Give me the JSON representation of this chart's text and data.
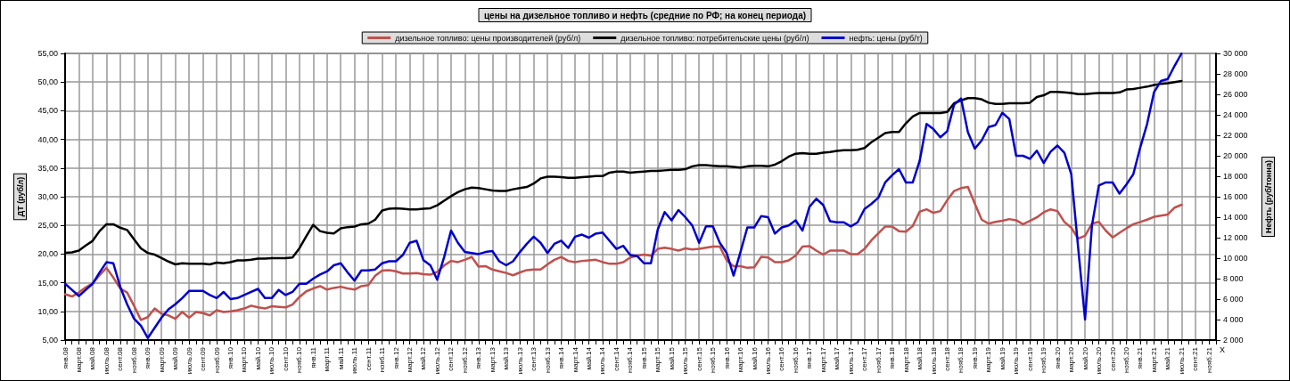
{
  "chart_data": {
    "type": "line",
    "title": "цены на дизельное топливо и нефть (средние по РФ; на конец периода)",
    "xlabel": "X",
    "ylabel": "ДТ (руб/л)",
    "y2label": "Нефть (руб/тонна)",
    "categories": [
      "янв.08",
      null,
      "март.08",
      null,
      "май.08",
      null,
      "июль.08",
      null,
      "сент.08",
      null,
      "нояб.08",
      null,
      "янв.09",
      null,
      "март.09",
      null,
      "май.09",
      null,
      "июль.09",
      null,
      "сент.09",
      null,
      "нояб.09",
      null,
      "янв.10",
      null,
      "март.10",
      null,
      "май.10",
      null,
      "июль.10",
      null,
      "сент.10",
      null,
      "нояб.10",
      null,
      "янв.11",
      null,
      "март.11",
      null,
      "май.11",
      null,
      "июль.11",
      null,
      "сент.11",
      null,
      "нояб.11",
      null,
      "янв.12",
      null,
      "март.12",
      null,
      "май.12",
      null,
      "июль.12",
      null,
      "сент.12",
      null,
      "нояб.12",
      null,
      "янв.13",
      null,
      "март.13",
      null,
      "май.13",
      null,
      "июль.13",
      null,
      "сент.13",
      null,
      "нояб.13",
      null,
      "янв.14",
      null,
      "март.14",
      null,
      "май.14",
      null,
      "июль.14",
      null,
      "сент.14",
      null,
      "нояб.14",
      null,
      "янв.15",
      null,
      "март.15",
      null,
      "май.15",
      null,
      "июль.15",
      null,
      "сент.15",
      null,
      "нояб.15",
      null,
      "янв.16",
      null,
      "март.16",
      null,
      "май.16",
      null,
      "июль.16",
      null,
      "сент.16",
      null,
      "нояб.16",
      null,
      "янв.17",
      null,
      "март.17",
      null,
      "май.17",
      null,
      "июль.17",
      null,
      "сент.17",
      null,
      "нояб.17",
      null,
      "янв.18",
      null,
      "март.18",
      null,
      "май.18",
      null,
      "июль.18",
      null,
      "сент.18",
      null,
      "нояб.18",
      null,
      "янв.19",
      null,
      "март.19",
      null,
      "май.19",
      null,
      "июль.19",
      null,
      "сент.19",
      null,
      "нояб.19",
      null,
      "янв.20",
      null,
      "март.20",
      null,
      "май.20",
      null,
      "июль.20",
      null,
      "сент.20",
      null,
      "нояб.20",
      null,
      "янв.21",
      null,
      "март.21",
      null,
      "май.21",
      null,
      "июль.21",
      null,
      "сент.21",
      null,
      "нояб.21",
      null
    ],
    "series": [
      {
        "name": "дизельное топливо: цены производителей (руб/л)",
        "color": "#c0504d",
        "values": [
          13.0,
          12.6,
          13.3,
          14.2,
          14.9,
          16.3,
          17.6,
          15.9,
          14.0,
          13.3,
          11.0,
          8.5,
          9.0,
          10.5,
          9.6,
          9.3,
          8.7,
          9.9,
          8.9,
          9.9,
          9.7,
          9.3,
          10.2,
          9.9,
          10.0,
          10.2,
          10.5,
          11.0,
          10.7,
          10.5,
          10.9,
          10.8,
          10.7,
          11.2,
          12.5,
          13.5,
          14.0,
          14.4,
          13.8,
          14.1,
          14.3,
          14.0,
          13.8,
          14.4,
          14.6,
          16.2,
          17.1,
          17.2,
          17.0,
          16.6,
          16.6,
          16.7,
          16.5,
          16.4,
          16.9,
          18.0,
          18.8,
          18.6,
          19.0,
          19.5,
          17.8,
          17.9,
          17.3,
          17.0,
          16.7,
          16.3,
          16.8,
          17.2,
          17.3,
          17.3,
          18.2,
          19.0,
          19.5,
          18.8,
          18.6,
          18.8,
          18.9,
          19.0,
          18.6,
          18.3,
          18.3,
          18.6,
          19.4,
          19.7,
          19.9,
          19.7,
          20.9,
          21.1,
          20.9,
          20.6,
          21.0,
          20.8,
          20.9,
          21.1,
          21.3,
          21.3,
          18.9,
          17.9,
          17.9,
          17.6,
          17.7,
          19.5,
          19.4,
          18.6,
          18.6,
          18.9,
          19.7,
          21.3,
          21.4,
          20.6,
          19.9,
          20.6,
          20.6,
          20.6,
          20.0,
          20.0,
          20.9,
          22.4,
          23.6,
          24.8,
          24.8,
          24.0,
          23.9,
          24.9,
          27.4,
          27.8,
          27.2,
          27.5,
          29.4,
          31.0,
          31.5,
          31.7,
          28.8,
          26.0,
          25.3,
          25.6,
          25.8,
          26.1,
          25.9,
          25.2,
          25.8,
          26.4,
          27.3,
          27.8,
          27.5,
          25.6,
          24.6,
          22.7,
          23.2,
          25.3,
          25.6,
          24.1,
          22.9,
          23.7,
          24.5,
          25.2,
          25.6,
          26.0,
          26.5,
          26.7,
          26.9,
          28.1,
          28.6,
          null,
          null,
          null,
          null,
          null
        ]
      },
      {
        "name": "дизельное топливо: потребительские цены (руб/л)",
        "color": "#000000",
        "values": [
          20.2,
          20.3,
          20.6,
          21.5,
          22.3,
          24.0,
          25.2,
          25.2,
          24.6,
          24.2,
          22.6,
          21.0,
          20.2,
          19.9,
          19.3,
          18.7,
          18.2,
          18.4,
          18.3,
          18.3,
          18.3,
          18.2,
          18.5,
          18.4,
          18.6,
          18.9,
          18.9,
          19.0,
          19.2,
          19.2,
          19.3,
          19.3,
          19.3,
          19.4,
          21.0,
          23.1,
          25.1,
          24.0,
          23.7,
          23.6,
          24.5,
          24.7,
          24.8,
          25.2,
          25.3,
          26.0,
          27.6,
          27.9,
          28.0,
          27.9,
          27.8,
          27.8,
          27.9,
          28.0,
          28.5,
          29.3,
          30.1,
          30.8,
          31.3,
          31.6,
          31.5,
          31.3,
          31.1,
          31.0,
          31.0,
          31.3,
          31.5,
          31.7,
          32.3,
          33.2,
          33.5,
          33.5,
          33.4,
          33.3,
          33.3,
          33.4,
          33.5,
          33.6,
          33.6,
          34.2,
          34.4,
          34.4,
          34.2,
          34.3,
          34.4,
          34.5,
          34.5,
          34.6,
          34.7,
          34.7,
          34.8,
          35.3,
          35.5,
          35.5,
          35.4,
          35.3,
          35.3,
          35.2,
          35.1,
          35.3,
          35.4,
          35.4,
          35.3,
          35.6,
          36.2,
          37.0,
          37.5,
          37.6,
          37.5,
          37.5,
          37.7,
          37.8,
          38.0,
          38.1,
          38.1,
          38.2,
          38.5,
          39.5,
          40.3,
          41.1,
          41.3,
          41.3,
          42.8,
          44.0,
          44.6,
          44.6,
          44.6,
          44.6,
          44.8,
          46.3,
          46.8,
          47.2,
          47.2,
          47.0,
          46.4,
          46.2,
          46.2,
          46.3,
          46.3,
          46.3,
          46.4,
          47.4,
          47.7,
          48.3,
          48.3,
          48.2,
          48.1,
          47.9,
          47.9,
          48.0,
          48.1,
          48.1,
          48.1,
          48.2,
          48.7,
          48.8,
          49.0,
          49.2,
          49.5,
          49.7,
          49.8,
          50.0,
          50.2,
          null,
          null,
          null,
          null,
          null
        ]
      },
      {
        "name": "нефть: цены (руб/т)",
        "color": "#0000cc",
        "axis": "y2",
        "values": [
          7500,
          6900,
          6300,
          6900,
          7500,
          8600,
          9600,
          9500,
          7200,
          5500,
          4100,
          3400,
          2200,
          3200,
          4200,
          5000,
          5500,
          6100,
          6800,
          6800,
          6800,
          6400,
          6100,
          6700,
          6000,
          6100,
          6400,
          6700,
          7000,
          6100,
          6100,
          6900,
          6400,
          6700,
          7500,
          7500,
          8000,
          8400,
          8700,
          9300,
          9500,
          8600,
          7800,
          8800,
          8800,
          8900,
          9500,
          9700,
          9700,
          10300,
          11500,
          11700,
          9800,
          9300,
          7900,
          10100,
          12700,
          11500,
          10600,
          10500,
          10400,
          10600,
          10700,
          9700,
          9300,
          9700,
          10600,
          11400,
          12100,
          11500,
          10500,
          11400,
          11700,
          11000,
          12100,
          12300,
          12000,
          12400,
          12500,
          11700,
          10900,
          11200,
          10300,
          10200,
          9500,
          9500,
          12800,
          14500,
          13700,
          14700,
          14000,
          13200,
          11500,
          13100,
          13100,
          11500,
          10500,
          8300,
          10600,
          13000,
          13000,
          14100,
          14000,
          12400,
          13000,
          13200,
          13700,
          12700,
          15000,
          15800,
          15200,
          13600,
          13500,
          13500,
          13100,
          13500,
          14800,
          15300,
          15900,
          17400,
          18100,
          18700,
          17400,
          17400,
          19500,
          23100,
          22600,
          21800,
          22400,
          25000,
          25600,
          22300,
          20700,
          21500,
          22800,
          23000,
          24200,
          23600,
          20000,
          20000,
          19700,
          20500,
          19300,
          20400,
          21000,
          20300,
          18200,
          11000,
          4000,
          13200,
          17100,
          17400,
          17400,
          16300,
          17200,
          18200,
          20800,
          23100,
          26200,
          27300,
          27500,
          28800,
          30000,
          null,
          null,
          null,
          null,
          null
        ]
      }
    ],
    "ylim": [
      5,
      55
    ],
    "yticks": [
      {
        "value": 5,
        "label": "5,00"
      },
      {
        "value": 10,
        "label": "10,00"
      },
      {
        "value": 15,
        "label": "15,00"
      },
      {
        "value": 20,
        "label": "20,00"
      },
      {
        "value": 25,
        "label": "25,00"
      },
      {
        "value": 30,
        "label": "30,00"
      },
      {
        "value": 35,
        "label": "35,00"
      },
      {
        "value": 40,
        "label": "40,00"
      },
      {
        "value": 45,
        "label": "45,00"
      },
      {
        "value": 50,
        "label": "50,00"
      },
      {
        "value": 55,
        "label": "55,00"
      }
    ],
    "y2lim": [
      2000,
      30000
    ],
    "y2ticks": [
      {
        "value": 2000,
        "label": "2 000"
      },
      {
        "value": 4000,
        "label": "4 000"
      },
      {
        "value": 6000,
        "label": "6 000"
      },
      {
        "value": 8000,
        "label": "8 000"
      },
      {
        "value": 10000,
        "label": "10 000"
      },
      {
        "value": 12000,
        "label": "12 000"
      },
      {
        "value": 14000,
        "label": "14 000"
      },
      {
        "value": 16000,
        "label": "16 000"
      },
      {
        "value": 18000,
        "label": "18 000"
      },
      {
        "value": 20000,
        "label": "20 000"
      },
      {
        "value": 22000,
        "label": "22 000"
      },
      {
        "value": 24000,
        "label": "24 000"
      },
      {
        "value": 26000,
        "label": "26 000"
      },
      {
        "value": 28000,
        "label": "28 000"
      },
      {
        "value": 30000,
        "label": "30 000"
      }
    ],
    "grid": true,
    "legend": "top",
    "marker": "none",
    "line_style": "solid"
  }
}
